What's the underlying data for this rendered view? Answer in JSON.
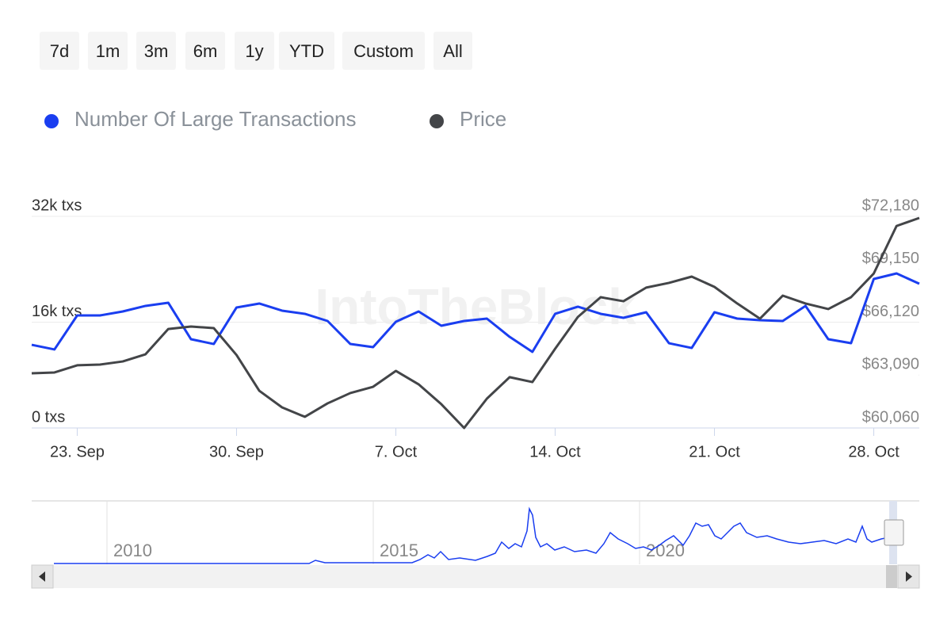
{
  "range_buttons": [
    "7d",
    "1m",
    "3m",
    "6m",
    "1y",
    "YTD",
    "Custom",
    "All"
  ],
  "chart_data": {
    "type": "line",
    "watermark": "IntoTheBlock",
    "categories": [
      null,
      null,
      "23. Sep",
      null,
      null,
      null,
      null,
      null,
      null,
      "30. Sep",
      null,
      null,
      null,
      null,
      null,
      null,
      "7. Oct",
      null,
      null,
      null,
      null,
      null,
      null,
      "14. Oct",
      null,
      null,
      null,
      null,
      null,
      null,
      "21. Oct",
      null,
      null,
      null,
      null,
      null,
      null,
      "28. Oct",
      null,
      null
    ],
    "series": [
      {
        "name": "Number Of Large Transactions",
        "color": "#1a3ef0",
        "axis": "y",
        "values": [
          12580,
          11870,
          17020,
          17020,
          17620,
          18460,
          18940,
          13420,
          12700,
          18220,
          18820,
          17740,
          17260,
          16180,
          12700,
          12220,
          16060,
          17620,
          15460,
          16180,
          16540,
          13780,
          11510,
          17260,
          18340,
          17260,
          16660,
          17500,
          12820,
          12100,
          17500,
          16540,
          16300,
          16180,
          18460,
          13420,
          12820,
          22530,
          23370,
          21810
        ]
      },
      {
        "name": "Price",
        "color": "#434548",
        "axis": "y2",
        "values": [
          63190,
          63240,
          63650,
          63690,
          63870,
          64280,
          65730,
          65870,
          65780,
          64240,
          62190,
          61240,
          60700,
          61470,
          62060,
          62420,
          63330,
          62560,
          61420,
          60060,
          61740,
          62970,
          62690,
          64600,
          66420,
          67550,
          67320,
          68100,
          68370,
          68730,
          68140,
          67190,
          66320,
          67640,
          67190,
          66870,
          67550,
          68910,
          71630,
          72090
        ]
      }
    ],
    "ylim": [
      0,
      32000
    ],
    "yticks": [
      {
        "value": 0,
        "label": "0 txs"
      },
      {
        "value": 16000,
        "label": "16k txs"
      },
      {
        "value": 32000,
        "label": "32k txs"
      }
    ],
    "y2lim": [
      60060,
      72180
    ],
    "y2ticks": [
      {
        "value": 60060,
        "label": "$60,060"
      },
      {
        "value": 63090,
        "label": "$63,090"
      },
      {
        "value": 66120,
        "label": "$66,120"
      },
      {
        "value": 69150,
        "label": "$69,150"
      },
      {
        "value": 72180,
        "label": "$72,180"
      }
    ],
    "grid": true,
    "legend": "top-left"
  },
  "navigator": {
    "labels": [
      "2010",
      "2015",
      "2020"
    ]
  }
}
